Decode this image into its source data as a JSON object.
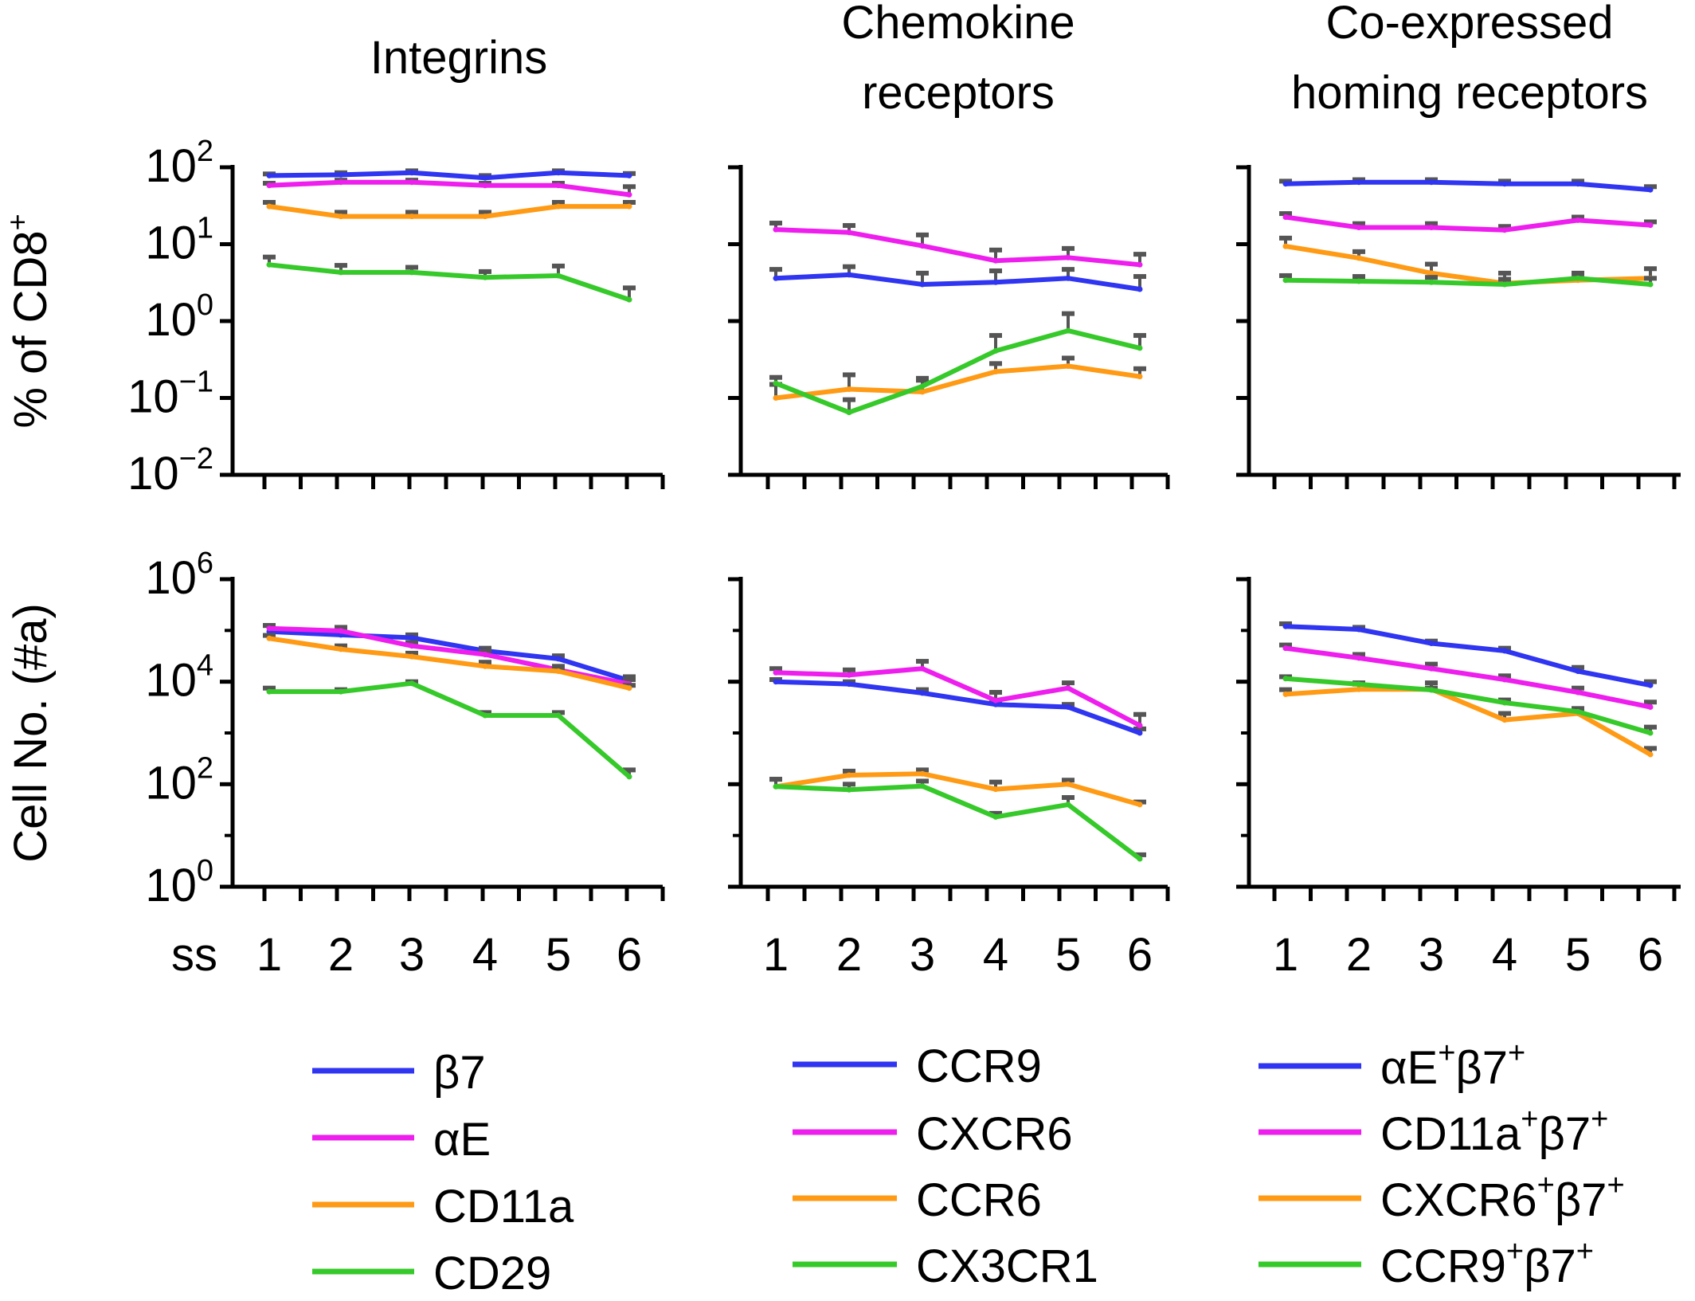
{
  "figure": {
    "y_axis_top": "% of CD8",
    "y_axis_top_sup": "+",
    "y_axis_bottom": "Cell No. (#a)",
    "x_axis_label": "ss",
    "x_ticks": [
      "1",
      "2",
      "3",
      "4",
      "5",
      "6"
    ]
  },
  "colors": {
    "blue": "#2f35f0",
    "magenta": "#ee1eee",
    "orange": "#ff9a14",
    "green": "#36c92a",
    "errorbar": "#555555"
  },
  "chart_data": [
    {
      "type": "line",
      "panel": "top-left",
      "title": "Integrins",
      "ylabel": "% of CD8+",
      "yscale": "log",
      "ylim": [
        0.01,
        100
      ],
      "x": [
        1,
        2,
        3,
        4,
        5,
        6
      ],
      "series": [
        {
          "name": "β7",
          "color": "blue",
          "values": [
            78,
            80,
            85,
            73,
            85,
            78
          ],
          "err": [
            82,
            85,
            90,
            78,
            90,
            83
          ]
        },
        {
          "name": "αE",
          "color": "magenta",
          "values": [
            58,
            64,
            64,
            58,
            58,
            44
          ],
          "err": [
            62,
            68,
            68,
            62,
            62,
            56
          ]
        },
        {
          "name": "CD11a",
          "color": "orange",
          "values": [
            31,
            23,
            23,
            23,
            31,
            31
          ],
          "err": [
            35,
            26,
            26,
            26,
            35,
            35
          ]
        },
        {
          "name": "CD29",
          "color": "green",
          "values": [
            5.4,
            4.3,
            4.3,
            3.7,
            3.9,
            1.9
          ],
          "err": [
            6.8,
            5.3,
            5.0,
            4.4,
            5.2,
            2.7
          ]
        }
      ]
    },
    {
      "type": "line",
      "panel": "top-middle",
      "title": "Chemokine receptors",
      "yscale": "log",
      "ylim": [
        0.01,
        100
      ],
      "x": [
        1,
        2,
        3,
        4,
        5,
        6
      ],
      "series": [
        {
          "name": "CCR9",
          "color": "blue",
          "values": [
            3.6,
            4.0,
            3.0,
            3.2,
            3.6,
            2.6
          ],
          "err": [
            4.7,
            5.1,
            4.2,
            4.5,
            4.7,
            3.8
          ]
        },
        {
          "name": "CXCR6",
          "color": "magenta",
          "values": [
            15.5,
            14.2,
            9.5,
            6.1,
            6.7,
            5.4
          ],
          "err": [
            18.8,
            17.5,
            13.2,
            8.4,
            8.8,
            7.4
          ]
        },
        {
          "name": "CCR6",
          "color": "orange",
          "values": [
            0.1,
            0.13,
            0.12,
            0.22,
            0.26,
            0.19
          ],
          "err": [
            0.15,
            0.2,
            0.17,
            0.28,
            0.33,
            0.24
          ]
        },
        {
          "name": "CX3CR1",
          "color": "green",
          "values": [
            0.155,
            0.065,
            0.142,
            0.41,
            0.75,
            0.445
          ],
          "err": [
            0.185,
            0.095,
            0.18,
            0.65,
            1.25,
            0.65
          ]
        }
      ]
    },
    {
      "type": "line",
      "panel": "top-right",
      "title": "Co-expressed homing receptors",
      "yscale": "log",
      "ylim": [
        0.01,
        100
      ],
      "x": [
        1,
        2,
        3,
        4,
        5,
        6
      ],
      "series": [
        {
          "name": "αE⁺β7⁺",
          "color": "blue",
          "values": [
            61,
            64,
            64,
            61,
            61,
            51
          ],
          "err": [
            66,
            69,
            69,
            66,
            66,
            56
          ]
        },
        {
          "name": "CD11a⁺β7⁺",
          "color": "magenta",
          "values": [
            22.5,
            16.5,
            16.5,
            15.3,
            20.5,
            17.7
          ],
          "err": [
            25,
            18.5,
            18.5,
            17,
            22.5,
            19.5
          ]
        },
        {
          "name": "CXCR6⁺β7⁺",
          "color": "orange",
          "values": [
            9.4,
            6.6,
            4.2,
            3.1,
            3.4,
            3.6
          ],
          "err": [
            12,
            8,
            5.5,
            4.2,
            4.2,
            4.8
          ]
        },
        {
          "name": "CCR9⁺β7⁺",
          "color": "green",
          "values": [
            3.4,
            3.3,
            3.2,
            3.0,
            3.6,
            3.0
          ],
          "err": [
            3.9,
            3.8,
            3.7,
            3.5,
            4.1,
            3.6
          ]
        }
      ]
    },
    {
      "type": "line",
      "panel": "bottom-left",
      "ylabel": "Cell No. (#a)",
      "xlabel": "ss",
      "yscale": "log",
      "ylim": [
        1,
        1000000
      ],
      "x": [
        1,
        2,
        3,
        4,
        5,
        6
      ],
      "series": [
        {
          "name": "β7",
          "color": "blue",
          "values": [
            95000,
            82000,
            72000,
            40000,
            28000,
            10500
          ],
          "err": [
            125000,
            110000,
            82000,
            45000,
            32000,
            12500
          ]
        },
        {
          "name": "αE",
          "color": "magenta",
          "values": [
            110000,
            98000,
            50000,
            34000,
            17000,
            9000
          ],
          "err": [
            125000,
            115000,
            58000,
            40000,
            20000,
            11000
          ]
        },
        {
          "name": "CD11a",
          "color": "orange",
          "values": [
            70000,
            43000,
            31000,
            20000,
            16000,
            7500
          ],
          "err": [
            80000,
            50000,
            36000,
            24000,
            18000,
            8500
          ]
        },
        {
          "name": "CD29",
          "color": "green",
          "values": [
            6400,
            6400,
            9300,
            2200,
            2200,
            140
          ],
          "err": [
            7500,
            7000,
            10000,
            2500,
            2500,
            190
          ]
        }
      ]
    },
    {
      "type": "line",
      "panel": "bottom-middle",
      "xlabel": "ss",
      "yscale": "log",
      "ylim": [
        1,
        1000000
      ],
      "x": [
        1,
        2,
        3,
        4,
        5,
        6
      ],
      "series": [
        {
          "name": "CCR9",
          "color": "blue",
          "values": [
            10000,
            9000,
            6000,
            3600,
            3200,
            1000
          ],
          "err": [
            11000,
            10000,
            7000,
            4000,
            3600,
            1200
          ]
        },
        {
          "name": "CXCR6",
          "color": "magenta",
          "values": [
            15000,
            13500,
            18000,
            4300,
            7500,
            1400
          ],
          "err": [
            18000,
            17000,
            25000,
            6200,
            9500,
            2300
          ]
        },
        {
          "name": "CCR6",
          "color": "orange",
          "values": [
            90,
            150,
            160,
            80,
            100,
            40
          ],
          "err": [
            125,
            180,
            190,
            110,
            120,
            45
          ]
        },
        {
          "name": "CX3CR1",
          "color": "green",
          "values": [
            90,
            78,
            92,
            23,
            40,
            3.5
          ],
          "err": [
            125,
            100,
            115,
            27,
            55,
            4.2
          ]
        }
      ]
    },
    {
      "type": "line",
      "panel": "bottom-right",
      "xlabel": "ss",
      "yscale": "log",
      "ylim": [
        1,
        1000000
      ],
      "x": [
        1,
        2,
        3,
        4,
        5,
        6
      ],
      "series": [
        {
          "name": "αE⁺β7⁺",
          "color": "blue",
          "values": [
            120000,
            105000,
            56000,
            40000,
            16000,
            8500
          ],
          "err": [
            135000,
            115000,
            62000,
            45000,
            19000,
            10000
          ]
        },
        {
          "name": "CD11a⁺β7⁺",
          "color": "magenta",
          "values": [
            45000,
            29000,
            18000,
            11000,
            6200,
            3200
          ],
          "err": [
            52000,
            34000,
            22000,
            13000,
            7500,
            4000
          ]
        },
        {
          "name": "CXCR6⁺β7⁺",
          "color": "orange",
          "values": [
            5700,
            7100,
            7100,
            1800,
            2400,
            380
          ],
          "err": [
            7000,
            9000,
            9500,
            2400,
            2900,
            500
          ]
        },
        {
          "name": "CCR9⁺β7⁺",
          "color": "green",
          "values": [
            11500,
            8900,
            6900,
            3900,
            2600,
            1000
          ],
          "err": [
            12500,
            9500,
            7500,
            4400,
            3000,
            1300
          ]
        }
      ]
    }
  ],
  "legends": [
    {
      "items": [
        {
          "label": "β7",
          "color": "blue"
        },
        {
          "label": "αE",
          "color": "magenta"
        },
        {
          "label": "CD11a",
          "color": "orange"
        },
        {
          "label": "CD29",
          "color": "green"
        }
      ]
    },
    {
      "items": [
        {
          "label": "CCR9",
          "color": "blue"
        },
        {
          "label": "CXCR6",
          "color": "magenta"
        },
        {
          "label": "CCR6",
          "color": "orange"
        },
        {
          "label": "CX3CR1",
          "color": "green"
        }
      ]
    },
    {
      "items": [
        {
          "main": "αE",
          "sup1": "+",
          "mid": "β7",
          "sup2": "+",
          "color": "blue"
        },
        {
          "main": "CD11a",
          "sup1": "+",
          "mid": "β7",
          "sup2": "+",
          "color": "magenta"
        },
        {
          "main": "CXCR6",
          "sup1": "+",
          "mid": "β7",
          "sup2": "+",
          "color": "orange"
        },
        {
          "main": "CCR9",
          "sup1": "+",
          "mid": "β7",
          "sup2": "+",
          "color": "green"
        }
      ]
    }
  ]
}
